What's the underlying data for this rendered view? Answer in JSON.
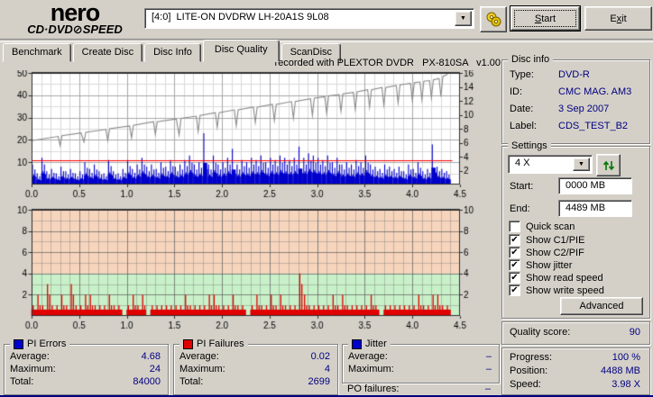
{
  "header": {
    "logo": {
      "line1": "nero",
      "line2_left": "CD·DVD",
      "disc_glyph": "⊘",
      "line2_right": "SPEED"
    },
    "drive_select": {
      "value": "[4:0]  LITE-ON DVDRW LH-20A1S 9L08"
    },
    "start_button": {
      "pre": "",
      "accel": "S",
      "post": "tart"
    },
    "exit_button": {
      "pre": "E",
      "accel": "x",
      "post": "it"
    }
  },
  "tabs": [
    {
      "label": "Benchmark",
      "active": false
    },
    {
      "label": "Create Disc",
      "active": false
    },
    {
      "label": "Disc Info",
      "active": false
    },
    {
      "label": "Disc Quality",
      "active": true
    },
    {
      "label": "ScanDisc",
      "active": false
    }
  ],
  "disc_info": {
    "legend": "Disc info",
    "rows": [
      {
        "label": "Type:",
        "value": "DVD-R"
      },
      {
        "label": "ID:",
        "value": "CMC MAG. AM3"
      },
      {
        "label": "Date:",
        "value": "3 Sep 2007"
      },
      {
        "label": "Label:",
        "value": "CDS_TEST_B2"
      }
    ]
  },
  "settings": {
    "legend": "Settings",
    "speed_value": "4 X",
    "start_label": "Start:",
    "start_value": "0000 MB",
    "end_label": "End:",
    "end_value": "4489 MB",
    "checkboxes": [
      {
        "label": "Quick scan",
        "checked": false
      },
      {
        "label": "Show C1/PIE",
        "checked": true
      },
      {
        "label": "Show C2/PIF",
        "checked": true
      },
      {
        "label": "Show jitter",
        "checked": true
      },
      {
        "label": "Show read speed",
        "checked": true
      },
      {
        "label": "Show write speed",
        "checked": true
      }
    ],
    "advanced_label": "Advanced"
  },
  "quality": {
    "label": "Quality score:",
    "value": "90"
  },
  "progress": {
    "rows": [
      {
        "label": "Progress:",
        "value": "100 %"
      },
      {
        "label": "Position:",
        "value": "4488 MB"
      },
      {
        "label": "Speed:",
        "value": "3.98 X"
      }
    ]
  },
  "stats": {
    "pi_errors": {
      "legend": "PI Errors",
      "color": "#0000cc",
      "rows": [
        {
          "label": "Average:",
          "value": "4.68"
        },
        {
          "label": "Maximum:",
          "value": "24"
        },
        {
          "label": "Total:",
          "value": "84000"
        }
      ]
    },
    "pi_failures": {
      "legend": "PI Failures",
      "color": "#e00000",
      "rows": [
        {
          "label": "Average:",
          "value": "0.02"
        },
        {
          "label": "Maximum:",
          "value": "4"
        },
        {
          "label": "Total:",
          "value": "2699"
        }
      ]
    },
    "jitter": {
      "legend": "Jitter",
      "color": "#0000cc",
      "rows": [
        {
          "label": "Average:",
          "value": "–"
        },
        {
          "label": "Maximum:",
          "value": "–"
        }
      ]
    },
    "po_failures": {
      "label": "PO failures:",
      "value": "–"
    }
  },
  "colors": {
    "window_bg": "#d4d0c8",
    "value_text": "#000080",
    "pie_blue": "#0000cc",
    "pif_red": "#e00000",
    "threshold_red": "#ff0000",
    "speed_line_gray": "#8a8a8a",
    "zone_green": "#c9f1c9",
    "zone_salmon": "#f7d5bd"
  },
  "chart_data": [
    {
      "type": "bar",
      "title": "recorded with PLEXTOR DVDR   PX-810SA   v1.00",
      "x_range": [
        0,
        4.5
      ],
      "x_tick_step": 0.5,
      "x_minor_step": 0.1,
      "y_left": {
        "range": [
          0,
          50
        ],
        "tick_step": 10,
        "minor_step": 5
      },
      "y_right": {
        "range": [
          0,
          16
        ],
        "tick_step": 2
      },
      "data_end_x": 4.37,
      "threshold_left": 11,
      "grid": true,
      "series": [
        {
          "name": "PI Errors",
          "type": "bars",
          "axis": "left",
          "color": "#0000cc",
          "x_step": 0.05,
          "values": [
            9,
            5,
            12,
            6,
            7,
            5,
            8,
            6,
            7,
            5,
            6,
            10,
            7,
            9,
            6,
            5,
            11,
            6,
            5,
            7,
            11,
            7,
            9,
            12,
            8,
            9,
            7,
            10,
            8,
            11,
            8,
            9,
            11,
            13,
            9,
            10,
            23,
            9,
            13,
            9,
            10,
            12,
            16,
            9,
            11,
            10,
            12,
            11,
            13,
            10,
            12,
            11,
            13,
            12,
            11,
            12,
            17,
            12,
            14,
            13,
            12,
            11,
            13,
            10,
            12,
            9,
            10,
            9,
            11,
            10,
            13,
            9,
            8,
            7,
            9,
            8,
            7,
            8,
            6,
            9,
            7,
            10,
            6,
            7,
            18,
            8,
            7,
            6
          ]
        },
        {
          "name": "Write speed",
          "type": "line",
          "axis": "right",
          "color": "#8a8a8a",
          "points": [
            [
              0.0,
              6.3
            ],
            [
              0.28,
              6.9
            ],
            [
              0.3,
              5.6
            ],
            [
              0.32,
              7.0
            ],
            [
              0.52,
              7.4
            ],
            [
              0.55,
              6.1
            ],
            [
              0.57,
              7.5
            ],
            [
              0.78,
              7.9
            ],
            [
              0.8,
              6.3
            ],
            [
              0.82,
              8.0
            ],
            [
              1.03,
              8.4
            ],
            [
              1.05,
              6.7
            ],
            [
              1.07,
              8.5
            ],
            [
              1.28,
              9.0
            ],
            [
              1.3,
              7.2
            ],
            [
              1.32,
              9.0
            ],
            [
              1.52,
              9.4
            ],
            [
              1.55,
              7.1
            ],
            [
              1.57,
              9.5
            ],
            [
              1.73,
              9.8
            ],
            [
              1.75,
              7.6
            ],
            [
              1.77,
              9.9
            ],
            [
              1.93,
              10.3
            ],
            [
              1.95,
              8.2
            ],
            [
              1.97,
              10.3
            ],
            [
              2.13,
              10.7
            ],
            [
              2.15,
              8.4
            ],
            [
              2.17,
              10.7
            ],
            [
              2.33,
              11.1
            ],
            [
              2.35,
              8.9
            ],
            [
              2.37,
              11.1
            ],
            [
              2.53,
              11.5
            ],
            [
              2.55,
              9.2
            ],
            [
              2.57,
              11.5
            ],
            [
              2.73,
              11.9
            ],
            [
              2.75,
              9.5
            ],
            [
              2.77,
              11.9
            ],
            [
              2.93,
              12.3
            ],
            [
              2.95,
              9.9
            ],
            [
              2.97,
              12.4
            ],
            [
              3.08,
              12.6
            ],
            [
              3.1,
              10.2
            ],
            [
              3.12,
              12.7
            ],
            [
              3.23,
              12.9
            ],
            [
              3.25,
              10.5
            ],
            [
              3.27,
              13.0
            ],
            [
              3.38,
              13.2
            ],
            [
              3.4,
              10.8
            ],
            [
              3.42,
              13.3
            ],
            [
              3.53,
              13.6
            ],
            [
              3.55,
              11.1
            ],
            [
              3.57,
              13.6
            ],
            [
              3.68,
              13.9
            ],
            [
              3.7,
              11.4
            ],
            [
              3.72,
              13.9
            ],
            [
              3.83,
              14.2
            ],
            [
              3.85,
              11.7
            ],
            [
              3.87,
              14.3
            ],
            [
              3.98,
              14.5
            ],
            [
              4.0,
              12.0
            ],
            [
              4.02,
              14.6
            ],
            [
              4.08,
              14.7
            ],
            [
              4.1,
              12.2
            ],
            [
              4.12,
              14.8
            ],
            [
              4.18,
              14.9
            ],
            [
              4.2,
              12.4
            ],
            [
              4.22,
              15.0
            ],
            [
              4.28,
              15.2
            ],
            [
              4.3,
              12.6
            ],
            [
              4.32,
              15.5
            ],
            [
              4.37,
              15.8
            ]
          ]
        }
      ]
    },
    {
      "type": "bar",
      "title": "",
      "x_range": [
        0,
        4.5
      ],
      "x_tick_step": 0.5,
      "x_minor_step": 0.1,
      "y_left": {
        "range": [
          0,
          10
        ],
        "tick_step": 2,
        "minor_step": 1
      },
      "y_right": {
        "range": [
          0,
          10
        ],
        "tick_step": 2
      },
      "data_end_x": 4.37,
      "zones": [
        {
          "from": 0,
          "to": 4,
          "color": "#c9f1c9"
        },
        {
          "from": 4,
          "to": 10,
          "color": "#f7d5bd"
        }
      ],
      "grid": true,
      "series": [
        {
          "name": "PI Failures",
          "type": "bars",
          "axis": "left",
          "color": "#e00000",
          "x_step": 0.05,
          "values": [
            1,
            2,
            1,
            3,
            1,
            1,
            2,
            1,
            3,
            1,
            1,
            2,
            2,
            1,
            1,
            1,
            2,
            1,
            1,
            0,
            1,
            2,
            1,
            2,
            0,
            1,
            1,
            1,
            1,
            1,
            1,
            1,
            2,
            1,
            1,
            1,
            1,
            2,
            2,
            1,
            1,
            1,
            2,
            1,
            1,
            0,
            1,
            2,
            1,
            1,
            2,
            1,
            2,
            1,
            1,
            1,
            4,
            2,
            1,
            1,
            1,
            1,
            1,
            2,
            1,
            2,
            1,
            1,
            1,
            1,
            1,
            2,
            1,
            0,
            1,
            1,
            1,
            1,
            1,
            1,
            1,
            2,
            1,
            1,
            2,
            2,
            1,
            1
          ]
        }
      ]
    }
  ]
}
